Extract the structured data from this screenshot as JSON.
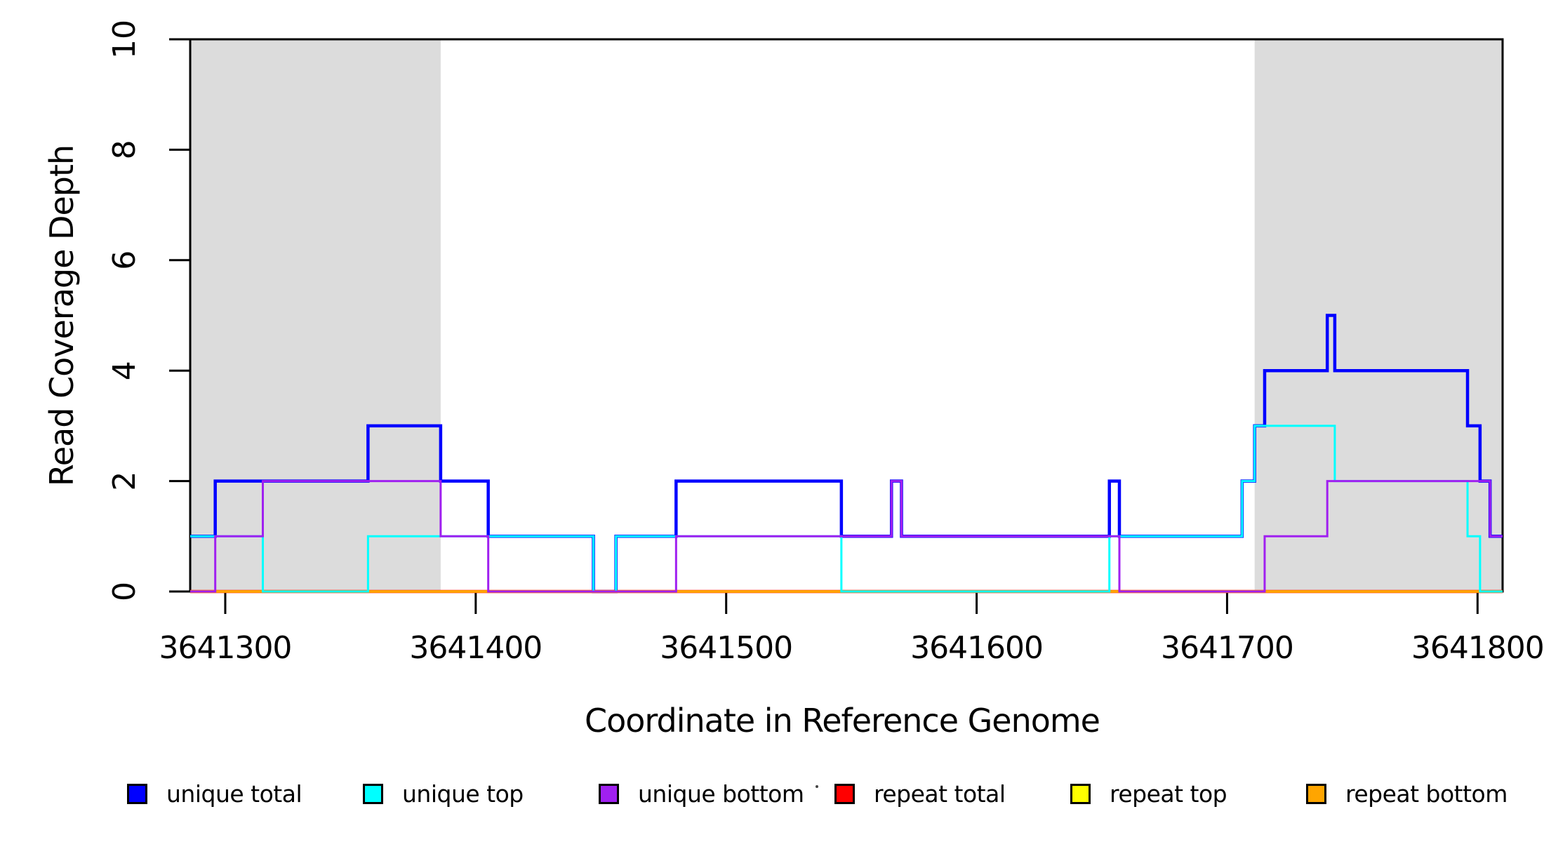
{
  "figure": {
    "x_axis": {
      "label": "Coordinate in Reference Genome",
      "tick_labels": [
        "3641300",
        "3641400",
        "3641500",
        "3641600",
        "3641700",
        "3641800"
      ],
      "tick_values": [
        3641300,
        3641400,
        3641500,
        3641600,
        3641700,
        3641800
      ]
    },
    "y_axis": {
      "label": "Read Coverage Depth",
      "tick_labels": [
        "0",
        "2",
        "4",
        "6",
        "8",
        "10"
      ],
      "tick_values": [
        0,
        2,
        4,
        6,
        8,
        10
      ]
    },
    "stray_dot_visible": true
  },
  "legend": {
    "items": [
      {
        "label": "unique total",
        "color": "#0000FF"
      },
      {
        "label": "unique top",
        "color": "#00FFFF"
      },
      {
        "label": "unique bottom",
        "color": "#A020F0"
      },
      {
        "label": "repeat total",
        "color": "#FF0000"
      },
      {
        "label": "repeat top",
        "color": "#FFFF00"
      },
      {
        "label": "repeat bottom",
        "color": "#FFA500"
      }
    ]
  },
  "chart_data": {
    "type": "line",
    "subtype": "step-coverage",
    "title": "",
    "xlabel": "Coordinate in Reference Genome",
    "ylabel": "Read Coverage Depth",
    "xlim": [
      3641286,
      3641810
    ],
    "ylim": [
      0,
      10
    ],
    "x_tick_values": [
      3641300,
      3641400,
      3641500,
      3641600,
      3641700,
      3641800
    ],
    "y_tick_values": [
      0,
      2,
      4,
      6,
      8,
      10
    ],
    "grid": false,
    "legend_position": "bottom",
    "frame_color": "#000000",
    "shade_color": "#DCDCDC",
    "shaded_regions": [
      {
        "from": 3641286,
        "to": 3641386
      },
      {
        "from": 3641711,
        "to": 3641810
      }
    ],
    "series": [
      {
        "name": "unique total",
        "color": "#0000FF",
        "line_width": 4.5,
        "draw_order": 1,
        "steps": [
          [
            3641286,
            1
          ],
          [
            3641296,
            2
          ],
          [
            3641357,
            3
          ],
          [
            3641386,
            2
          ],
          [
            3641405,
            1
          ],
          [
            3641447,
            0
          ],
          [
            3641456,
            1
          ],
          [
            3641480,
            2
          ],
          [
            3641546,
            1
          ],
          [
            3641566,
            2
          ],
          [
            3641570,
            1
          ],
          [
            3641653,
            2
          ],
          [
            3641657,
            1
          ],
          [
            3641706,
            2
          ],
          [
            3641711,
            3
          ],
          [
            3641715,
            4
          ],
          [
            3641740,
            5
          ],
          [
            3641743,
            4
          ],
          [
            3641796,
            3
          ],
          [
            3641801,
            2
          ],
          [
            3641805,
            1
          ]
        ]
      },
      {
        "name": "repeat total",
        "color": "#FF0000",
        "line_width": 4.5,
        "draw_order": 2,
        "steps": [
          [
            3641286,
            0
          ]
        ]
      },
      {
        "name": "repeat top",
        "color": "#FFFF00",
        "line_width": 3.5,
        "draw_order": 3,
        "steps": [
          [
            3641286,
            0
          ]
        ]
      },
      {
        "name": "repeat bottom",
        "color": "#FFA500",
        "line_width": 3,
        "draw_order": 4,
        "steps": [
          [
            3641286,
            0
          ]
        ]
      },
      {
        "name": "unique top",
        "color": "#00FFFF",
        "line_width": 3,
        "draw_order": 5,
        "steps": [
          [
            3641286,
            1
          ],
          [
            3641315,
            0
          ],
          [
            3641357,
            1
          ],
          [
            3641447,
            0
          ],
          [
            3641456,
            1
          ],
          [
            3641546,
            0
          ],
          [
            3641653,
            1
          ],
          [
            3641706,
            2
          ],
          [
            3641711,
            3
          ],
          [
            3641743,
            2
          ],
          [
            3641796,
            1
          ],
          [
            3641801,
            0
          ]
        ]
      },
      {
        "name": "unique bottom",
        "color": "#A020F0",
        "line_width": 3,
        "draw_order": 6,
        "steps": [
          [
            3641286,
            0
          ],
          [
            3641296,
            1
          ],
          [
            3641315,
            2
          ],
          [
            3641386,
            1
          ],
          [
            3641405,
            0
          ],
          [
            3641480,
            1
          ],
          [
            3641566,
            2
          ],
          [
            3641570,
            1
          ],
          [
            3641657,
            0
          ],
          [
            3641715,
            1
          ],
          [
            3641740,
            2
          ],
          [
            3641805,
            1
          ]
        ]
      }
    ]
  }
}
